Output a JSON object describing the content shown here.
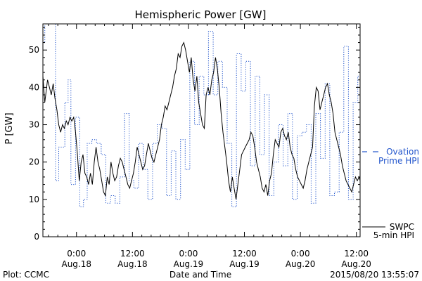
{
  "chart_data": {
    "type": "line",
    "title": "Hemispheric Power [GW]",
    "ylabel": "P [GW]",
    "xlabel": "Date and Time",
    "ylim": [
      0,
      57
    ],
    "xlim": [
      -7.2,
      60.8
    ],
    "yticks": [
      0,
      10,
      20,
      30,
      40,
      50
    ],
    "xticks": [
      {
        "x": 0,
        "time": "0:00",
        "date": "Aug.18"
      },
      {
        "x": 12,
        "time": "12:00",
        "date": "Aug.18"
      },
      {
        "x": 24,
        "time": "0:00",
        "date": "Aug.19"
      },
      {
        "x": 36,
        "time": "12:00",
        "date": "Aug.19"
      },
      {
        "x": 48,
        "time": "0:00",
        "date": "Aug.20"
      },
      {
        "x": 60,
        "time": "12:00",
        "date": "Aug.20"
      }
    ],
    "x_units": "hours from 2015-08-18 00:00 UT",
    "grid": false,
    "series": [
      {
        "name": "Ovation Prime HPI",
        "label_lines": [
          "Ovation",
          "Prime HPI"
        ],
        "color": "#2255cc",
        "style": "dotted-step",
        "x": [
          -7.2,
          -6.8,
          -4.5,
          -3.8,
          -2.5,
          -1.8,
          -1.2,
          -0.2,
          0.7,
          1.5,
          2.3,
          3.3,
          4.3,
          5.3,
          6.3,
          7.3,
          8.3,
          9.3,
          10.3,
          11.3,
          12.3,
          13.3,
          14.3,
          15.3,
          16.3,
          17.3,
          18.3,
          19.3,
          20.3,
          21.3,
          22.3,
          23.3,
          24.3,
          25.3,
          26.3,
          27.3,
          28.3,
          29.3,
          30.3,
          31.3,
          32.3,
          33.3,
          34.3,
          35.3,
          36.3,
          37.3,
          38.3,
          39.3,
          40.3,
          41.3,
          42.3,
          43.3,
          44.3,
          45.3,
          46.3,
          47.3,
          48.3,
          49.3,
          50.3,
          51.3,
          52.3,
          53.3,
          54.3,
          55.3,
          56.3,
          57.3,
          58.3,
          59.3,
          60.3,
          60.8
        ],
        "values": [
          52,
          57,
          15,
          24,
          36,
          42,
          14,
          32,
          8,
          10,
          25,
          26,
          25,
          22,
          9,
          11,
          9,
          16,
          33,
          15,
          13,
          25,
          18,
          10,
          25,
          30,
          29,
          11,
          23,
          10,
          26,
          18,
          47,
          30,
          43,
          38,
          55,
          38,
          47,
          40,
          25,
          8,
          49,
          39,
          47,
          19,
          43,
          22,
          38,
          11,
          20,
          30,
          19,
          33,
          10,
          27,
          28,
          30,
          9,
          33,
          21,
          41,
          11,
          12,
          28,
          51,
          10,
          36,
          43,
          41
        ]
      },
      {
        "name": "SWPC 5-min HPI",
        "label_lines": [
          "SWPC",
          "5-min HPI"
        ],
        "color": "#000000",
        "style": "solid",
        "x": [
          -7.2,
          -6.8,
          -6.2,
          -5.8,
          -5.4,
          -5.0,
          -4.6,
          -4.2,
          -3.8,
          -3.4,
          -3.0,
          -2.6,
          -2.2,
          -1.8,
          -1.4,
          -1.0,
          -0.6,
          -0.2,
          0.2,
          0.6,
          1.0,
          1.4,
          1.8,
          2.2,
          2.6,
          3.0,
          3.4,
          3.8,
          4.2,
          4.6,
          5.0,
          5.4,
          5.8,
          6.2,
          6.6,
          7.0,
          7.4,
          7.8,
          8.2,
          8.6,
          9.0,
          9.4,
          9.8,
          10.2,
          10.6,
          11.0,
          11.4,
          11.8,
          12.2,
          12.6,
          13.0,
          13.4,
          13.8,
          14.2,
          14.6,
          15.0,
          15.4,
          15.8,
          16.2,
          16.6,
          17.0,
          17.4,
          17.8,
          18.2,
          18.6,
          19.0,
          19.4,
          19.8,
          20.2,
          20.6,
          21.0,
          21.4,
          21.8,
          22.2,
          22.6,
          23.0,
          23.4,
          23.8,
          24.2,
          24.6,
          25.0,
          25.4,
          25.8,
          26.2,
          26.6,
          27.0,
          27.4,
          27.8,
          28.2,
          28.6,
          29.0,
          29.4,
          29.8,
          30.2,
          30.6,
          31.0,
          31.4,
          31.8,
          32.2,
          32.6,
          33.0,
          33.4,
          33.8,
          34.2,
          34.6,
          35.0,
          35.4,
          35.8,
          36.2,
          36.6,
          37.0,
          37.4,
          37.8,
          38.2,
          38.6,
          39.0,
          39.4,
          39.8,
          40.2,
          40.6,
          41.0,
          41.4,
          41.8,
          42.2,
          42.6,
          43.0,
          43.4,
          43.8,
          44.2,
          44.6,
          45.0,
          45.4,
          45.8,
          46.2,
          46.6,
          47.0,
          47.4,
          47.8,
          48.2,
          48.6,
          49.0,
          49.4,
          49.8,
          50.2,
          50.6,
          51.0,
          51.4,
          51.8,
          52.2,
          52.6,
          53.0,
          53.4,
          53.8,
          54.2,
          54.6,
          55.0,
          55.4,
          55.8,
          56.2,
          56.6,
          57.0,
          57.4,
          57.8,
          58.2,
          58.6,
          59.0,
          59.4,
          59.8,
          60.2,
          60.6,
          60.8
        ],
        "values": [
          43,
          36,
          42,
          40,
          38,
          41,
          37,
          34,
          30,
          28,
          30,
          29,
          31,
          30,
          32,
          31,
          32,
          28,
          22,
          15,
          20,
          22,
          17,
          16,
          14,
          17,
          14,
          20,
          24,
          20,
          18,
          15,
          12,
          11,
          16,
          14,
          20,
          17,
          15,
          16,
          19,
          21,
          20,
          18,
          16,
          14,
          13,
          15,
          17,
          20,
          24,
          22,
          20,
          18,
          19,
          22,
          25,
          23,
          21,
          20,
          22,
          24,
          26,
          30,
          32,
          35,
          34,
          36,
          38,
          40,
          43,
          45,
          49,
          48,
          51,
          52,
          50,
          47,
          44,
          48,
          42,
          39,
          43,
          36,
          33,
          30,
          29,
          38,
          40,
          38,
          42,
          44,
          48,
          45,
          40,
          33,
          28,
          24,
          20,
          15,
          12,
          16,
          13,
          10,
          14,
          18,
          22,
          23,
          24,
          25,
          26,
          28,
          27,
          24,
          20,
          18,
          16,
          13,
          12,
          14,
          11,
          15,
          17,
          22,
          26,
          25,
          24,
          28,
          29,
          27,
          26,
          28,
          24,
          22,
          21,
          18,
          16,
          15,
          14,
          13,
          15,
          18,
          20,
          22,
          24,
          35,
          40,
          39,
          34,
          36,
          38,
          40,
          41,
          38,
          36,
          33,
          28,
          26,
          24,
          22,
          19,
          17,
          15,
          14,
          13,
          12,
          14,
          16,
          15,
          16,
          15
        ]
      }
    ]
  },
  "footer": {
    "left": "Plot: CCMC",
    "right": "2015/08/20 13:55:07"
  }
}
